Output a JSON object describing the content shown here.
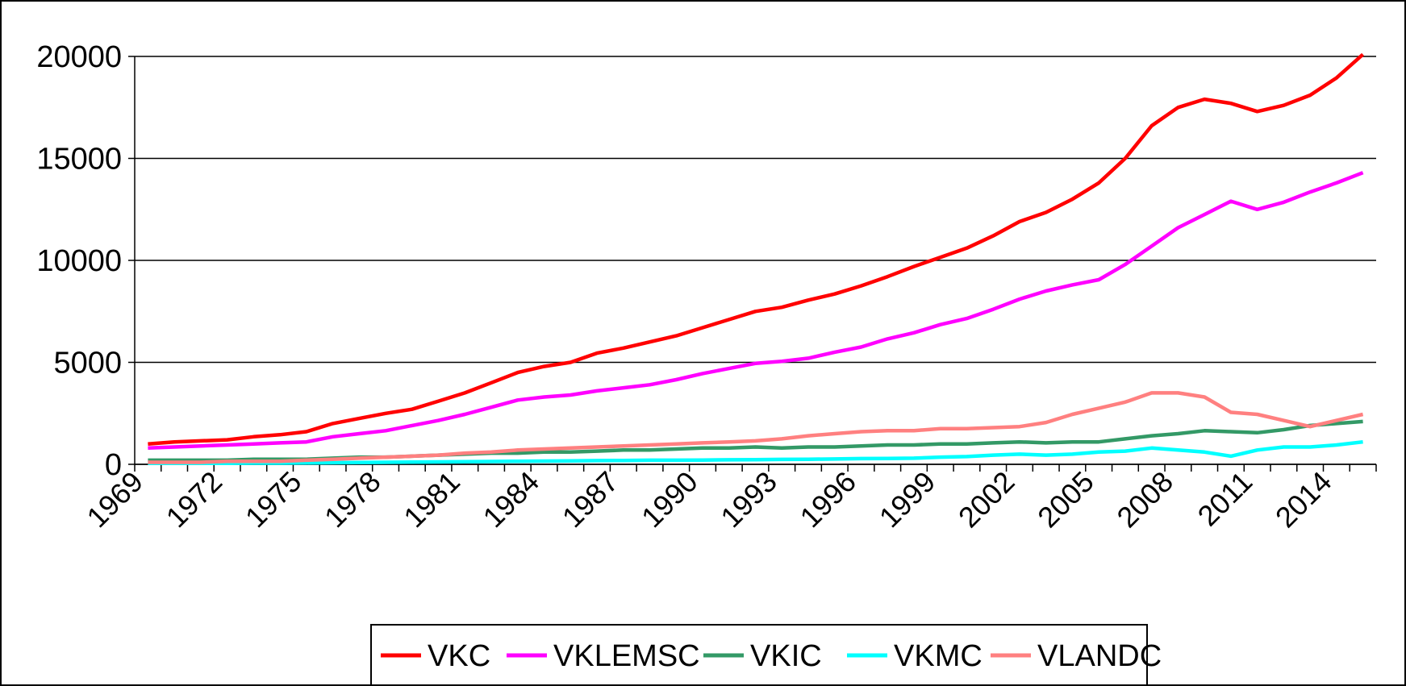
{
  "chart_data": {
    "type": "line",
    "categories": [
      "1969",
      null,
      null,
      "1972",
      null,
      null,
      "1975",
      null,
      null,
      "1978",
      null,
      null,
      "1981",
      null,
      null,
      "1984",
      null,
      null,
      "1987",
      null,
      null,
      "1990",
      null,
      null,
      "1993",
      null,
      null,
      "1996",
      null,
      null,
      "1999",
      null,
      null,
      "2002",
      null,
      null,
      "2005",
      null,
      null,
      "2008",
      null,
      null,
      "2011",
      null,
      null,
      "2014",
      null
    ],
    "ylim": [
      0,
      20000
    ],
    "yticks": [
      0,
      5000,
      10000,
      15000,
      20000
    ],
    "grid": true,
    "legend": "bottom",
    "series": [
      {
        "name": "VKC",
        "color": "#ff0000",
        "values": [
          1000,
          1100,
          1150,
          1200,
          1350,
          1450,
          1600,
          2000,
          2250,
          2500,
          2700,
          3100,
          3500,
          4000,
          4500,
          4800,
          5000,
          5450,
          5700,
          6000,
          6300,
          6700,
          7100,
          7500,
          7700,
          8050,
          8350,
          8750,
          9200,
          9700,
          10150,
          10600,
          11200,
          11900,
          12350,
          13000,
          13800,
          15000,
          16600,
          17500,
          17900,
          17700,
          17300,
          17600,
          18100,
          18950,
          20100
        ]
      },
      {
        "name": "VKLEMSC",
        "color": "#ff00ff",
        "values": [
          800,
          850,
          900,
          950,
          1000,
          1050,
          1100,
          1350,
          1500,
          1650,
          1900,
          2150,
          2450,
          2800,
          3150,
          3300,
          3400,
          3600,
          3750,
          3900,
          4150,
          4450,
          4700,
          4950,
          5050,
          5200,
          5500,
          5750,
          6150,
          6450,
          6850,
          7150,
          7600,
          8100,
          8500,
          8800,
          9050,
          9800,
          10700,
          11600,
          12250,
          12900,
          12500,
          12850,
          13350,
          13800,
          14300
        ]
      },
      {
        "name": "VKIC",
        "color": "#339966",
        "values": [
          200,
          200,
          200,
          200,
          250,
          250,
          250,
          300,
          350,
          350,
          400,
          450,
          500,
          550,
          550,
          600,
          600,
          650,
          700,
          700,
          750,
          800,
          800,
          850,
          800,
          850,
          850,
          900,
          950,
          950,
          1000,
          1000,
          1050,
          1100,
          1050,
          1100,
          1100,
          1250,
          1400,
          1500,
          1650,
          1600,
          1550,
          1700,
          1900,
          2000,
          2100
        ]
      },
      {
        "name": "VKMC",
        "color": "#00ffff",
        "values": [
          50,
          50,
          50,
          50,
          60,
          60,
          70,
          80,
          90,
          100,
          110,
          120,
          130,
          140,
          150,
          160,
          170,
          180,
          190,
          200,
          200,
          210,
          220,
          230,
          240,
          250,
          260,
          280,
          290,
          300,
          350,
          380,
          450,
          500,
          450,
          500,
          600,
          650,
          800,
          700,
          600,
          400,
          700,
          850,
          850,
          950,
          1100
        ]
      },
      {
        "name": "VLANDC",
        "color": "#ff8080",
        "values": [
          100,
          100,
          100,
          150,
          150,
          150,
          200,
          250,
          300,
          350,
          400,
          450,
          550,
          600,
          700,
          750,
          800,
          850,
          900,
          950,
          1000,
          1050,
          1100,
          1150,
          1250,
          1400,
          1500,
          1600,
          1650,
          1650,
          1750,
          1750,
          1800,
          1850,
          2050,
          2450,
          2750,
          3050,
          3500,
          3500,
          3300,
          2550,
          2450,
          2150,
          1850,
          2150,
          2450
        ]
      }
    ]
  }
}
